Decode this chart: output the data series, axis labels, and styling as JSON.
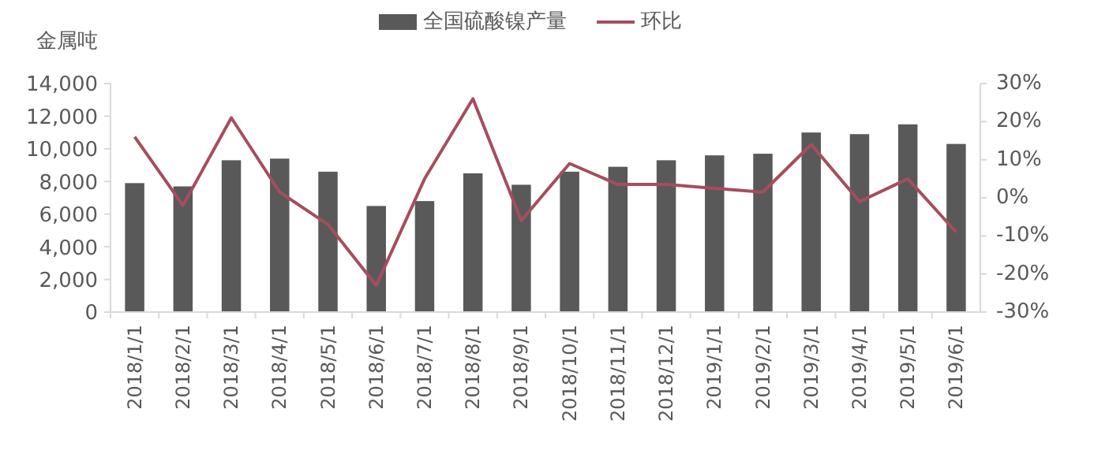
{
  "chart_data": {
    "type": "bar",
    "ylabel": "金属吨",
    "categories": [
      "2018/1/1",
      "2018/2/1",
      "2018/3/1",
      "2018/4/1",
      "2018/5/1",
      "2018/6/1",
      "2018/7/1",
      "2018/8/1",
      "2018/9/1",
      "2018/10/1",
      "2018/11/1",
      "2018/12/1",
      "2019/1/1",
      "2019/2/1",
      "2019/3/1",
      "2019/4/1",
      "2019/5/1",
      "2019/6/1"
    ],
    "series": [
      {
        "name": "全国硫酸镍产量",
        "color": "#595959",
        "values": [
          7900,
          7700,
          9300,
          9400,
          8600,
          6500,
          6800,
          8500,
          7800,
          8600,
          8900,
          9300,
          9600,
          9700,
          11000,
          10900,
          11500,
          10300
        ]
      },
      {
        "name": "环比",
        "type": "line",
        "axis": "y2",
        "color": "#a64d5e",
        "values": [
          16,
          -2,
          21,
          1.5,
          -7,
          -23,
          5,
          26,
          -6,
          9,
          3.5,
          3.5,
          2.5,
          1.5,
          14,
          -1,
          5,
          -9
        ]
      }
    ],
    "ylim": [
      0,
      14000
    ],
    "yticks": [
      {
        "value": 0,
        "label": "0"
      },
      {
        "value": 2000,
        "label": "2,000"
      },
      {
        "value": 4000,
        "label": "4,000"
      },
      {
        "value": 6000,
        "label": "6,000"
      },
      {
        "value": 8000,
        "label": "8,000"
      },
      {
        "value": 10000,
        "label": "10,000"
      },
      {
        "value": 12000,
        "label": "12,000"
      },
      {
        "value": 14000,
        "label": "14,000"
      }
    ],
    "y2lim": [
      -30,
      30
    ],
    "y2ticks": [
      {
        "value": -30,
        "label": "-30%"
      },
      {
        "value": -20,
        "label": "-20%"
      },
      {
        "value": -10,
        "label": "-10%"
      },
      {
        "value": 0,
        "label": "0%"
      },
      {
        "value": 10,
        "label": "10%"
      },
      {
        "value": 20,
        "label": "20%"
      },
      {
        "value": 30,
        "label": "30%"
      }
    ],
    "legend": "top",
    "grid": false
  }
}
